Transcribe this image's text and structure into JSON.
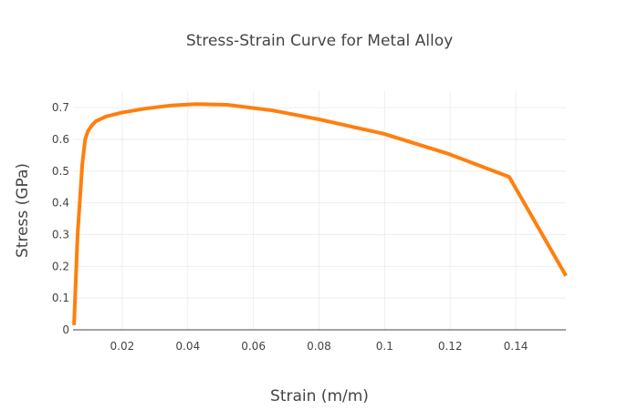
{
  "chart_data": {
    "type": "line",
    "title": "Stress-Strain Curve for Metal Alloy",
    "xlabel": "Strain (m/m)",
    "ylabel": "Stress (GPa)",
    "xlim": [
      0.005,
      0.1553
    ],
    "ylim": [
      0,
      0.752
    ],
    "grid": true,
    "xticks": [
      0.02,
      0.04,
      0.06,
      0.08,
      0.1,
      0.12,
      0.14
    ],
    "xtick_labels": [
      "0.02",
      "0.04",
      "0.06",
      "0.08",
      "0.1",
      "0.12",
      "0.14"
    ],
    "yticks": [
      0,
      0.1,
      0.2,
      0.3,
      0.4,
      0.5,
      0.6,
      0.7
    ],
    "ytick_labels": [
      "0",
      "0.1",
      "0.2",
      "0.3",
      "0.4",
      "0.5",
      "0.6",
      "0.7"
    ],
    "series": [
      {
        "name": "Stress",
        "color": "#ff7f0e",
        "x": [
          0.0053,
          0.0064,
          0.0078,
          0.0087,
          0.0095,
          0.0108,
          0.012,
          0.015,
          0.0197,
          0.027,
          0.035,
          0.0426,
          0.052,
          0.066,
          0.08,
          0.0996,
          0.119,
          0.138,
          0.1553
        ],
        "y": [
          0.015,
          0.3,
          0.52,
          0.6,
          0.625,
          0.645,
          0.657,
          0.672,
          0.684,
          0.697,
          0.707,
          0.711,
          0.709,
          0.691,
          0.663,
          0.618,
          0.556,
          0.482,
          0.17
        ]
      }
    ]
  }
}
